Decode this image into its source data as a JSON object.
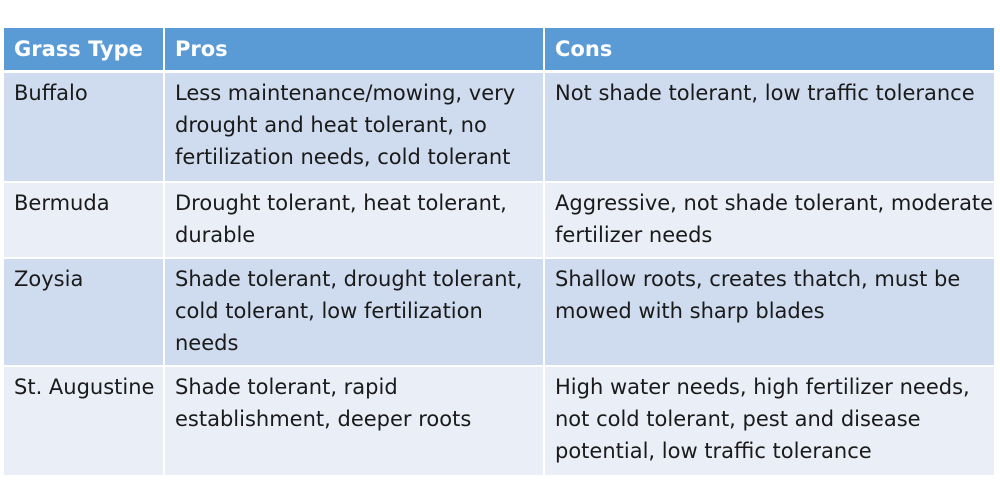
{
  "table": {
    "headers": [
      "Grass Type",
      "Pros",
      "Cons"
    ],
    "rows": [
      {
        "type": "Buffalo",
        "pros": "Less maintenance/mowing, very drought and heat tolerant, no fertilization needs, cold tolerant",
        "cons": "Not shade tolerant, low traffic tolerance"
      },
      {
        "type": "Bermuda",
        "pros": "Drought tolerant, heat tolerant, durable",
        "cons": "Aggressive, not shade tolerant, moderate fertilizer needs"
      },
      {
        "type": "Zoysia",
        "pros": "Shade tolerant, drought tolerant, cold tolerant, low fertilization needs",
        "cons": "Shallow roots, creates thatch, must be mowed with sharp blades"
      },
      {
        "type": "St. Augustine",
        "pros": "Shade tolerant, rapid establishment, deeper roots",
        "cons": "High water needs, high fertilizer needs, not cold tolerant, pest and disease potential, low traffic tolerance"
      }
    ]
  },
  "colors": {
    "header_bg": "#5b9bd5",
    "row_dark": "#cfdbee",
    "row_light": "#e9eef7"
  }
}
